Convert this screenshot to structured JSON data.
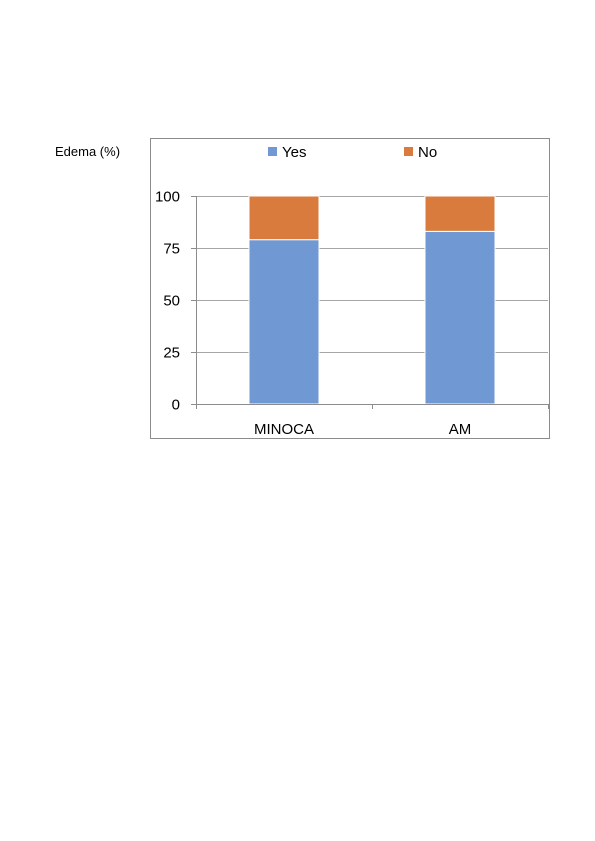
{
  "chart_data": {
    "type": "bar",
    "stacked": true,
    "ylabel": "Edema (%)",
    "categories": [
      "MINOCA",
      "AM"
    ],
    "series": [
      {
        "name": "Yes",
        "values": [
          79,
          83
        ],
        "color": "#7099d3"
      },
      {
        "name": "No",
        "values": [
          21,
          17
        ],
        "color": "#d97b3c"
      }
    ],
    "ylim": [
      0,
      100
    ],
    "yticks": [
      0,
      25,
      50,
      75,
      100
    ],
    "grid": true,
    "legend_position": "top"
  }
}
